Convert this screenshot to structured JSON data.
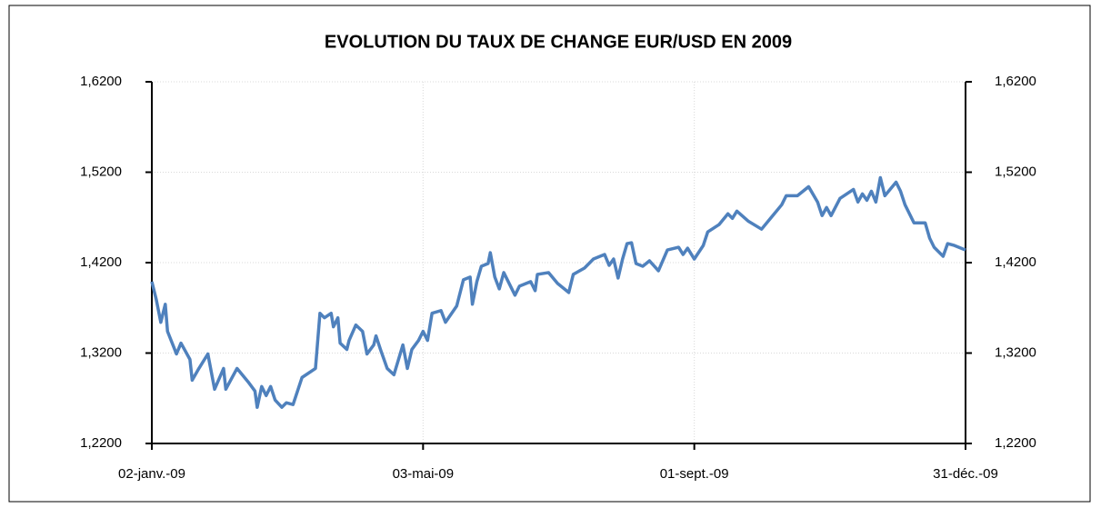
{
  "chart_data": {
    "type": "line",
    "title": "EVOLUTION DU TAUX DE CHANGE EUR/USD EN 2009",
    "x": [
      "2009-01-02",
      "2009-01-04",
      "2009-01-06",
      "2009-01-08",
      "2009-01-09",
      "2009-01-13",
      "2009-01-15",
      "2009-01-19",
      "2009-01-20",
      "2009-01-23",
      "2009-01-27",
      "2009-01-30",
      "2009-02-03",
      "2009-02-04",
      "2009-02-09",
      "2009-02-14",
      "2009-02-17",
      "2009-02-18",
      "2009-02-20",
      "2009-02-22",
      "2009-02-24",
      "2009-02-26",
      "2009-03-01",
      "2009-03-03",
      "2009-03-06",
      "2009-03-08",
      "2009-03-10",
      "2009-03-16",
      "2009-03-18",
      "2009-03-20",
      "2009-03-23",
      "2009-03-24",
      "2009-03-26",
      "2009-03-27",
      "2009-03-30",
      "2009-03-31",
      "2009-04-03",
      "2009-04-06",
      "2009-04-08",
      "2009-04-11",
      "2009-04-12",
      "2009-04-14",
      "2009-04-17",
      "2009-04-20",
      "2009-04-24",
      "2009-04-26",
      "2009-04-28",
      "2009-05-01",
      "2009-05-03",
      "2009-05-05",
      "2009-05-07",
      "2009-05-11",
      "2009-05-13",
      "2009-05-18",
      "2009-05-21",
      "2009-05-24",
      "2009-05-25",
      "2009-05-27",
      "2009-05-29",
      "2009-06-01",
      "2009-06-02",
      "2009-06-04",
      "2009-06-06",
      "2009-06-08",
      "2009-06-13",
      "2009-06-15",
      "2009-06-20",
      "2009-06-22",
      "2009-06-23",
      "2009-06-28",
      "2009-07-02",
      "2009-07-07",
      "2009-07-09",
      "2009-07-14",
      "2009-07-18",
      "2009-07-23",
      "2009-07-25",
      "2009-07-27",
      "2009-07-29",
      "2009-07-31",
      "2009-08-02",
      "2009-08-04",
      "2009-08-06",
      "2009-08-09",
      "2009-08-12",
      "2009-08-16",
      "2009-08-20",
      "2009-08-25",
      "2009-08-27",
      "2009-08-29",
      "2009-09-01",
      "2009-09-05",
      "2009-09-07",
      "2009-09-12",
      "2009-09-16",
      "2009-09-18",
      "2009-09-20",
      "2009-09-25",
      "2009-10-01",
      "2009-10-06",
      "2009-10-10",
      "2009-10-12",
      "2009-10-17",
      "2009-10-22",
      "2009-10-26",
      "2009-10-28",
      "2009-10-30",
      "2009-11-01",
      "2009-11-05",
      "2009-11-11",
      "2009-11-13",
      "2009-11-15",
      "2009-11-17",
      "2009-11-19",
      "2009-11-21",
      "2009-11-23",
      "2009-11-25",
      "2009-11-30",
      "2009-12-02",
      "2009-12-04",
      "2009-12-08",
      "2009-12-13",
      "2009-12-15",
      "2009-12-17",
      "2009-12-21",
      "2009-12-23",
      "2009-12-26",
      "2009-12-31"
    ],
    "series": [
      {
        "name": "EUR/USD",
        "color": "#4f81bd",
        "values": [
          1.399,
          1.379,
          1.354,
          1.374,
          1.344,
          1.319,
          1.331,
          1.313,
          1.29,
          1.303,
          1.319,
          1.28,
          1.303,
          1.28,
          1.303,
          1.288,
          1.278,
          1.26,
          1.283,
          1.273,
          1.283,
          1.268,
          1.26,
          1.265,
          1.263,
          1.278,
          1.293,
          1.303,
          1.364,
          1.359,
          1.364,
          1.349,
          1.359,
          1.331,
          1.324,
          1.334,
          1.351,
          1.344,
          1.319,
          1.329,
          1.339,
          1.324,
          1.303,
          1.296,
          1.329,
          1.303,
          1.324,
          1.334,
          1.344,
          1.334,
          1.364,
          1.367,
          1.354,
          1.372,
          1.401,
          1.404,
          1.374,
          1.399,
          1.416,
          1.419,
          1.431,
          1.404,
          1.391,
          1.409,
          1.384,
          1.394,
          1.399,
          1.389,
          1.407,
          1.409,
          1.397,
          1.387,
          1.407,
          1.414,
          1.424,
          1.429,
          1.417,
          1.424,
          1.403,
          1.424,
          1.441,
          1.442,
          1.419,
          1.416,
          1.422,
          1.411,
          1.434,
          1.437,
          1.429,
          1.436,
          1.424,
          1.439,
          1.454,
          1.462,
          1.474,
          1.469,
          1.477,
          1.466,
          1.457,
          1.472,
          1.484,
          1.494,
          1.494,
          1.504,
          1.487,
          1.472,
          1.481,
          1.472,
          1.491,
          1.501,
          1.487,
          1.496,
          1.489,
          1.499,
          1.487,
          1.514,
          1.494,
          1.509,
          1.499,
          1.484,
          1.464,
          1.464,
          1.447,
          1.437,
          1.427,
          1.441,
          1.439,
          1.434
        ]
      }
    ],
    "xlim": [
      "2009-01-02",
      "2009-12-31"
    ],
    "xticks": [
      {
        "value": "2009-01-02",
        "label": "02-janv.-09"
      },
      {
        "value": "2009-05-03",
        "label": "03-mai-09"
      },
      {
        "value": "2009-09-01",
        "label": "01-sept.-09"
      },
      {
        "value": "2009-12-31",
        "label": "31-déc.-09"
      }
    ],
    "ylim": [
      1.22,
      1.62
    ],
    "yticks": [
      {
        "value": 1.22,
        "label": "1,2200"
      },
      {
        "value": 1.32,
        "label": "1,3200"
      },
      {
        "value": 1.42,
        "label": "1,4200"
      },
      {
        "value": 1.52,
        "label": "1,5200"
      },
      {
        "value": 1.62,
        "label": "1,6200"
      }
    ],
    "y2lim": [
      1.22,
      1.62
    ],
    "y2ticks": [
      {
        "value": 1.22,
        "label": "1,2200"
      },
      {
        "value": 1.32,
        "label": "1,3200"
      },
      {
        "value": 1.42,
        "label": "1,4200"
      },
      {
        "value": 1.52,
        "label": "1,5200"
      },
      {
        "value": 1.62,
        "label": "1,6200"
      }
    ],
    "grid": true
  }
}
